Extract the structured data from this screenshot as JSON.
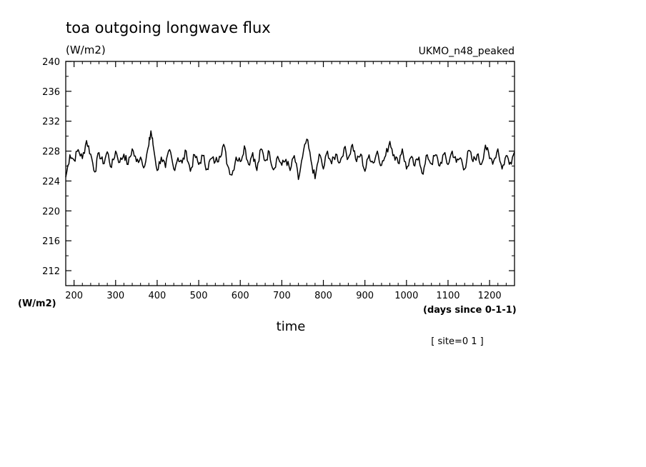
{
  "chart_data": {
    "type": "line",
    "title": "toa outgoing longwave flux",
    "units_label": "(W/m2)",
    "model_label": "UKMO_n48_peaked",
    "ylabel": "(W/m2)",
    "xlabel": "time",
    "x_units_label": "(days since 0-1-1)",
    "site_label": "[ site=0 1 ]",
    "xlim": [
      180,
      1260
    ],
    "ylim": [
      210,
      240
    ],
    "x_ticks": [
      200,
      300,
      400,
      500,
      600,
      700,
      800,
      900,
      1000,
      1100,
      1200
    ],
    "y_ticks": [
      212,
      216,
      220,
      224,
      228,
      232,
      236,
      240
    ],
    "grid": false,
    "series": [
      {
        "x": [
          180,
          190,
          200,
          210,
          220,
          230,
          240,
          250,
          260,
          270,
          280,
          290,
          300,
          310,
          320,
          330,
          340,
          350,
          360,
          370,
          380,
          385,
          390,
          400,
          410,
          420,
          430,
          440,
          450,
          460,
          470,
          480,
          490,
          500,
          510,
          520,
          530,
          540,
          550,
          560,
          570,
          580,
          590,
          600,
          610,
          620,
          630,
          640,
          650,
          660,
          670,
          680,
          690,
          700,
          710,
          720,
          730,
          740,
          750,
          760,
          770,
          780,
          790,
          800,
          810,
          820,
          830,
          840,
          850,
          860,
          870,
          880,
          890,
          900,
          910,
          920,
          930,
          940,
          950,
          960,
          970,
          980,
          990,
          1000,
          1010,
          1020,
          1030,
          1040,
          1050,
          1060,
          1070,
          1080,
          1090,
          1100,
          1110,
          1120,
          1130,
          1140,
          1150,
          1160,
          1170,
          1180,
          1190,
          1200,
          1210,
          1220,
          1230,
          1240,
          1250,
          1260
        ],
        "values": [
          224.5,
          227.5,
          226.8,
          228.2,
          227.0,
          229.4,
          227.6,
          225.2,
          227.8,
          226.3,
          227.9,
          225.8,
          228.0,
          226.5,
          227.6,
          226.2,
          228.3,
          226.6,
          227.2,
          226.0,
          228.8,
          230.7,
          228.9,
          225.4,
          227.2,
          225.8,
          228.2,
          225.6,
          227.1,
          226.4,
          228.0,
          225.3,
          227.5,
          226.2,
          227.4,
          225.6,
          227.0,
          226.6,
          227.3,
          228.9,
          226.0,
          224.8,
          227.2,
          226.6,
          228.7,
          226.2,
          227.8,
          225.4,
          228.3,
          226.7,
          227.9,
          225.5,
          227.3,
          226.1,
          226.9,
          225.4,
          227.4,
          224.2,
          227.2,
          229.6,
          226.8,
          224.3,
          227.6,
          225.6,
          228.0,
          226.3,
          227.6,
          226.5,
          228.4,
          227.1,
          228.9,
          226.6,
          227.6,
          225.3,
          227.5,
          226.4,
          228.0,
          226.1,
          227.4,
          229.3,
          227.5,
          226.4,
          228.3,
          225.6,
          227.1,
          226.0,
          227.2,
          224.9,
          227.5,
          226.3,
          227.5,
          226.0,
          227.6,
          226.2,
          228.0,
          226.5,
          227.1,
          225.6,
          228.1,
          226.6,
          227.5,
          226.2,
          228.8,
          227.0,
          226.7,
          228.3,
          225.6,
          227.4,
          226.5,
          227.9
        ]
      }
    ]
  }
}
